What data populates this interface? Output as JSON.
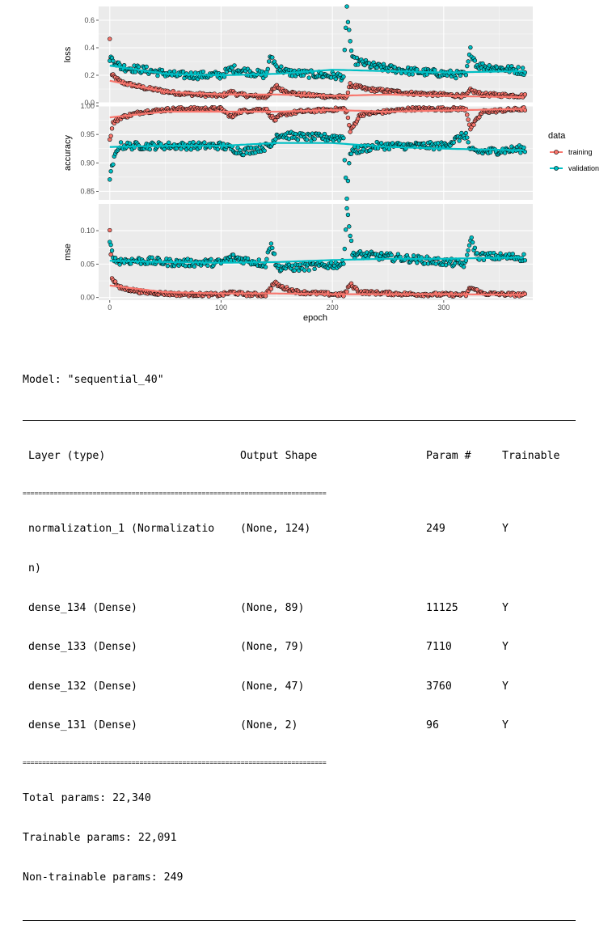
{
  "chart_data": {
    "type": "scatter",
    "subtype": "faceted scatter with smoothed trend lines",
    "xlabel": "epoch",
    "x_ticks": [
      0,
      100,
      200,
      300
    ],
    "xlim": [
      -10,
      380
    ],
    "epochs": 374,
    "legend": {
      "title": "data",
      "position": "right",
      "entries": [
        "training",
        "validation"
      ]
    },
    "colors": {
      "training": "#f8766d",
      "validation": "#00bfc4"
    },
    "grid": true,
    "facets": [
      {
        "metric": "loss",
        "ylim": [
          0,
          0.7
        ],
        "y_ticks": [
          "0.0",
          "0.2",
          "0.4",
          "0.6"
        ],
        "y_tick_values": [
          0,
          0.2,
          0.4,
          0.6
        ],
        "series": [
          {
            "name": "training",
            "anchors": [
              [
                0,
                0.46
              ],
              [
                2,
                0.2
              ],
              [
                10,
                0.15
              ],
              [
                30,
                0.11
              ],
              [
                60,
                0.07
              ],
              [
                100,
                0.05
              ],
              [
                110,
                0.08
              ],
              [
                115,
                0.06
              ],
              [
                140,
                0.04
              ],
              [
                150,
                0.12
              ],
              [
                155,
                0.09
              ],
              [
                170,
                0.06
              ],
              [
                210,
                0.04
              ],
              [
                213,
                0.05
              ],
              [
                216,
                0.13
              ],
              [
                230,
                0.1
              ],
              [
                270,
                0.07
              ],
              [
                320,
                0.05
              ],
              [
                324,
                0.09
              ],
              [
                335,
                0.06
              ],
              [
                373,
                0.05
              ]
            ],
            "smooth": [
              [
                0,
                0.16
              ],
              [
                50,
                0.08
              ],
              [
                100,
                0.06
              ],
              [
                150,
                0.06
              ],
              [
                200,
                0.05
              ],
              [
                250,
                0.06
              ],
              [
                300,
                0.05
              ],
              [
                373,
                0.04
              ]
            ]
          },
          {
            "name": "validation",
            "anchors": [
              [
                0,
                0.33
              ],
              [
                10,
                0.26
              ],
              [
                30,
                0.24
              ],
              [
                60,
                0.2
              ],
              [
                100,
                0.2
              ],
              [
                110,
                0.25
              ],
              [
                140,
                0.2
              ],
              [
                145,
                0.34
              ],
              [
                150,
                0.26
              ],
              [
                160,
                0.22
              ],
              [
                210,
                0.19
              ],
              [
                213,
                0.69
              ],
              [
                215,
                0.52
              ],
              [
                218,
                0.31
              ],
              [
                240,
                0.26
              ],
              [
                270,
                0.23
              ],
              [
                320,
                0.2
              ],
              [
                324,
                0.38
              ],
              [
                330,
                0.27
              ],
              [
                373,
                0.23
              ]
            ],
            "smooth": [
              [
                0,
                0.27
              ],
              [
                50,
                0.21
              ],
              [
                100,
                0.2
              ],
              [
                150,
                0.21
              ],
              [
                200,
                0.24
              ],
              [
                250,
                0.23
              ],
              [
                300,
                0.22
              ],
              [
                373,
                0.23
              ]
            ]
          }
        ]
      },
      {
        "metric": "accuracy",
        "ylim": [
          0.835,
          1.0
        ],
        "y_ticks": [
          "0.85",
          "0.90",
          "0.95",
          "1.00"
        ],
        "y_tick_values": [
          0.85,
          0.9,
          0.95,
          1.0
        ],
        "series": [
          {
            "name": "training",
            "anchors": [
              [
                0,
                0.94
              ],
              [
                3,
                0.97
              ],
              [
                10,
                0.98
              ],
              [
                30,
                0.99
              ],
              [
                60,
                0.995
              ],
              [
                100,
                0.995
              ],
              [
                110,
                0.98
              ],
              [
                115,
                0.99
              ],
              [
                140,
                0.995
              ],
              [
                148,
                0.975
              ],
              [
                155,
                0.985
              ],
              [
                170,
                0.99
              ],
              [
                210,
                0.995
              ],
              [
                213,
                0.99
              ],
              [
                216,
                0.955
              ],
              [
                225,
                0.985
              ],
              [
                270,
                0.995
              ],
              [
                320,
                0.995
              ],
              [
                324,
                0.96
              ],
              [
                335,
                0.99
              ],
              [
                373,
                0.995
              ]
            ],
            "smooth": [
              [
                0,
                0.98
              ],
              [
                50,
                0.99
              ],
              [
                100,
                0.99
              ],
              [
                150,
                0.99
              ],
              [
                200,
                0.993
              ],
              [
                250,
                0.99
              ],
              [
                300,
                0.992
              ],
              [
                373,
                0.995
              ]
            ]
          },
          {
            "name": "validation",
            "anchors": [
              [
                0,
                0.87
              ],
              [
                3,
                0.9
              ],
              [
                8,
                0.93
              ],
              [
                30,
                0.93
              ],
              [
                60,
                0.93
              ],
              [
                100,
                0.93
              ],
              [
                120,
                0.92
              ],
              [
                145,
                0.93
              ],
              [
                150,
                0.95
              ],
              [
                180,
                0.945
              ],
              [
                210,
                0.945
              ],
              [
                213,
                0.84
              ],
              [
                216,
                0.92
              ],
              [
                240,
                0.93
              ],
              [
                270,
                0.93
              ],
              [
                300,
                0.93
              ],
              [
                320,
                0.95
              ],
              [
                324,
                0.92
              ],
              [
                340,
                0.92
              ],
              [
                373,
                0.925
              ]
            ],
            "smooth": [
              [
                0,
                0.928
              ],
              [
                50,
                0.93
              ],
              [
                100,
                0.93
              ],
              [
                150,
                0.935
              ],
              [
                200,
                0.935
              ],
              [
                250,
                0.928
              ],
              [
                300,
                0.925
              ],
              [
                373,
                0.922
              ]
            ]
          }
        ]
      },
      {
        "metric": "mse",
        "ylim": [
          -0.004,
          0.14
        ],
        "y_ticks": [
          "0.00",
          "0.05",
          "0.10"
        ],
        "y_tick_values": [
          0,
          0.05,
          0.1
        ],
        "series": [
          {
            "name": "training",
            "anchors": [
              [
                0,
                0.1
              ],
              [
                2,
                0.03
              ],
              [
                8,
                0.015
              ],
              [
                30,
                0.008
              ],
              [
                60,
                0.005
              ],
              [
                100,
                0.004
              ],
              [
                110,
                0.008
              ],
              [
                120,
                0.005
              ],
              [
                140,
                0.004
              ],
              [
                148,
                0.022
              ],
              [
                155,
                0.015
              ],
              [
                170,
                0.008
              ],
              [
                210,
                0.004
              ],
              [
                213,
                0.01
              ],
              [
                216,
                0.02
              ],
              [
                225,
                0.008
              ],
              [
                270,
                0.005
              ],
              [
                320,
                0.004
              ],
              [
                324,
                0.015
              ],
              [
                335,
                0.006
              ],
              [
                373,
                0.004
              ]
            ],
            "smooth": [
              [
                0,
                0.018
              ],
              [
                50,
                0.008
              ],
              [
                100,
                0.006
              ],
              [
                150,
                0.006
              ],
              [
                200,
                0.005
              ],
              [
                250,
                0.005
              ],
              [
                300,
                0.005
              ],
              [
                373,
                0.004
              ]
            ]
          },
          {
            "name": "validation",
            "anchors": [
              [
                0,
                0.08
              ],
              [
                5,
                0.055
              ],
              [
                30,
                0.055
              ],
              [
                60,
                0.052
              ],
              [
                100,
                0.052
              ],
              [
                110,
                0.06
              ],
              [
                140,
                0.05
              ],
              [
                145,
                0.085
              ],
              [
                150,
                0.045
              ],
              [
                170,
                0.045
              ],
              [
                210,
                0.05
              ],
              [
                213,
                0.135
              ],
              [
                215,
                0.11
              ],
              [
                218,
                0.065
              ],
              [
                240,
                0.062
              ],
              [
                270,
                0.058
              ],
              [
                320,
                0.05
              ],
              [
                324,
                0.09
              ],
              [
                330,
                0.062
              ],
              [
                373,
                0.06
              ]
            ],
            "smooth": [
              [
                0,
                0.055
              ],
              [
                50,
                0.053
              ],
              [
                100,
                0.052
              ],
              [
                150,
                0.053
              ],
              [
                200,
                0.056
              ],
              [
                250,
                0.058
              ],
              [
                300,
                0.058
              ],
              [
                373,
                0.06
              ]
            ]
          }
        ]
      }
    ]
  },
  "summary": {
    "model_line": "Model: \"sequential_40\"",
    "rule_eq": "==============================================================================",
    "headers": {
      "layer": "Layer (type)",
      "shape": "Output Shape",
      "params": "Param #",
      "trainable": "Trainable"
    },
    "rows": [
      {
        "layer": "normalization_1 (Normalizatio",
        "shape": "(None, 124)",
        "params": "249",
        "trainable": "Y"
      },
      {
        "layer": "n)",
        "shape": "",
        "params": "",
        "trainable": ""
      },
      {
        "layer": "dense_134 (Dense)",
        "shape": "(None, 89)",
        "params": "11125",
        "trainable": "Y"
      },
      {
        "layer": "dense_133 (Dense)",
        "shape": "(None, 79)",
        "params": "7110",
        "trainable": "Y"
      },
      {
        "layer": "dense_132 (Dense)",
        "shape": "(None, 47)",
        "params": "3760",
        "trainable": "Y"
      },
      {
        "layer": "dense_131 (Dense)",
        "shape": "(None, 2)",
        "params": "96",
        "trainable": "Y"
      }
    ],
    "total": "Total params: 22,340",
    "trainable": "Trainable params: 22,091",
    "non_trainable": "Non-trainable params: 249"
  }
}
